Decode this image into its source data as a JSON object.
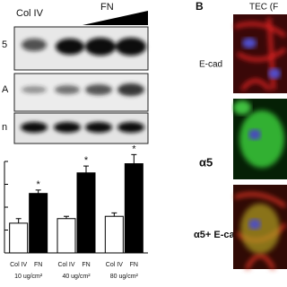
{
  "panel_a": {
    "lane_labels": {
      "control": "Col IV",
      "treatment": "FN"
    },
    "blot_labels": [
      "5",
      "A",
      "n"
    ]
  },
  "chart_data": {
    "type": "bar",
    "categories": [
      "10 ug/cm²",
      "40 ug/cm²",
      "80 ug/cm²"
    ],
    "series": [
      {
        "name": "Col IV",
        "color": "#ffffff",
        "values": [
          1.3,
          1.5,
          1.6
        ],
        "errors": [
          0.2,
          0.1,
          0.15
        ]
      },
      {
        "name": "FN",
        "color": "#000000",
        "values": [
          2.6,
          3.5,
          3.9
        ],
        "errors": [
          0.15,
          0.3,
          0.4
        ]
      }
    ],
    "annotations": [
      "*",
      "*",
      "*"
    ],
    "ylim": [
      0,
      4
    ],
    "yticks": [
      1,
      2,
      3,
      4
    ]
  },
  "panel_b": {
    "label": "B",
    "title": "TEC (F",
    "rows": [
      "E-cad",
      "α5",
      "α5+ E-cad"
    ]
  }
}
